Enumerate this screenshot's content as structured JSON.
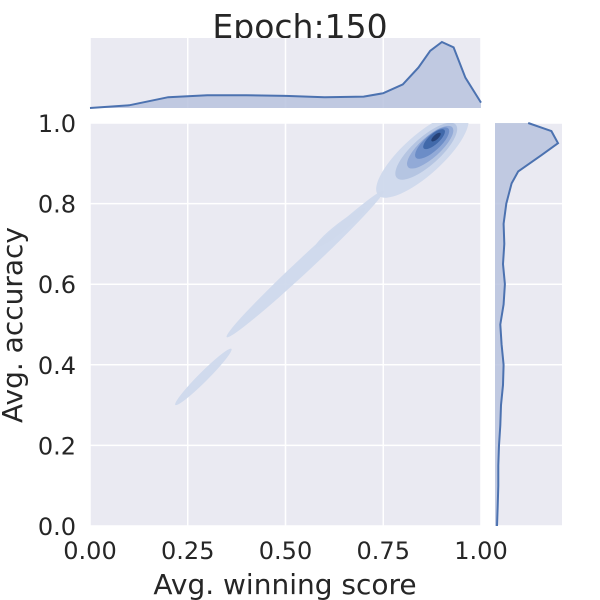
{
  "chart_data": {
    "type": "joint-kde",
    "title": "Epoch:150",
    "xlabel": "Avg. winning score",
    "ylabel": "Avg. accuracy",
    "xlim": [
      0,
      1
    ],
    "ylim": [
      0,
      1
    ],
    "xticks": [
      "0.00",
      "0.25",
      "0.50",
      "0.75",
      "1.00"
    ],
    "yticks": [
      "0.0",
      "0.2",
      "0.4",
      "0.6",
      "0.8",
      "1.0"
    ],
    "grid": true,
    "background_color": "#eaeaf2",
    "series_color": "#4c72b0",
    "fill_color": "#b8c3de",
    "marginal_x": {
      "x": [
        0.0,
        0.1,
        0.2,
        0.3,
        0.4,
        0.5,
        0.6,
        0.7,
        0.75,
        0.8,
        0.84,
        0.87,
        0.9,
        0.93,
        0.96,
        1.0
      ],
      "density": [
        0.0,
        0.04,
        0.16,
        0.19,
        0.19,
        0.18,
        0.16,
        0.17,
        0.22,
        0.35,
        0.6,
        0.85,
        0.98,
        0.9,
        0.45,
        0.08
      ]
    },
    "marginal_y": {
      "y": [
        0.0,
        0.05,
        0.1,
        0.15,
        0.2,
        0.25,
        0.3,
        0.35,
        0.4,
        0.45,
        0.5,
        0.55,
        0.6,
        0.65,
        0.7,
        0.75,
        0.8,
        0.85,
        0.88,
        0.92,
        0.95,
        0.98,
        1.0
      ],
      "density": [
        0.03,
        0.04,
        0.05,
        0.05,
        0.06,
        0.08,
        0.09,
        0.12,
        0.13,
        0.1,
        0.08,
        0.13,
        0.15,
        0.12,
        0.14,
        0.13,
        0.17,
        0.25,
        0.35,
        0.7,
        0.95,
        0.85,
        0.5
      ]
    },
    "kde_levels": [
      {
        "level": 1,
        "color": "#cfd9ec",
        "blobs": [
          {
            "cx": 0.85,
            "cy": 0.92,
            "rx": 0.15,
            "ry": 0.05,
            "angle": 42
          },
          {
            "cx": 0.55,
            "cy": 0.65,
            "rx": 0.27,
            "ry": 0.018,
            "angle": 43
          },
          {
            "cx": 0.29,
            "cy": 0.37,
            "rx": 0.1,
            "ry": 0.012,
            "angle": 45
          },
          {
            "cx": 0.64,
            "cy": 0.74,
            "rx": 0.08,
            "ry": 0.012,
            "angle": 38
          }
        ]
      },
      {
        "level": 2,
        "color": "#b3c4e2",
        "blobs": [
          {
            "cx": 0.86,
            "cy": 0.93,
            "rx": 0.1,
            "ry": 0.035,
            "angle": 42
          }
        ]
      },
      {
        "level": 3,
        "color": "#90a9d6",
        "blobs": [
          {
            "cx": 0.87,
            "cy": 0.94,
            "rx": 0.075,
            "ry": 0.026,
            "angle": 42
          }
        ]
      },
      {
        "level": 4,
        "color": "#6a8bc6",
        "blobs": [
          {
            "cx": 0.875,
            "cy": 0.95,
            "rx": 0.055,
            "ry": 0.02,
            "angle": 42
          }
        ]
      },
      {
        "level": 5,
        "color": "#3f67a9",
        "blobs": [
          {
            "cx": 0.88,
            "cy": 0.96,
            "rx": 0.035,
            "ry": 0.013,
            "angle": 42
          }
        ]
      },
      {
        "level": 6,
        "color": "#243f73",
        "blobs": [
          {
            "cx": 0.885,
            "cy": 0.965,
            "rx": 0.015,
            "ry": 0.006,
            "angle": 42
          }
        ]
      }
    ]
  }
}
